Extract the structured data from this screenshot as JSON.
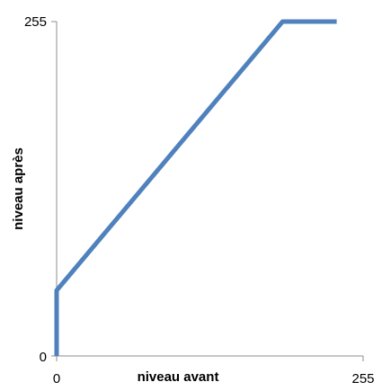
{
  "chart_data": {
    "type": "line",
    "title": "",
    "xlabel": "niveau avant",
    "ylabel": "niveau après",
    "xlim": [
      0,
      255
    ],
    "ylim": [
      0,
      255
    ],
    "grid": false,
    "legend": "none",
    "x_ticks": [
      "0",
      "255"
    ],
    "y_ticks": [
      "0",
      "255"
    ],
    "series": [
      {
        "color": "#4f81bd",
        "x": [
          0,
          0,
          188,
          233
        ],
        "y": [
          0,
          50,
          255,
          255
        ]
      }
    ]
  }
}
